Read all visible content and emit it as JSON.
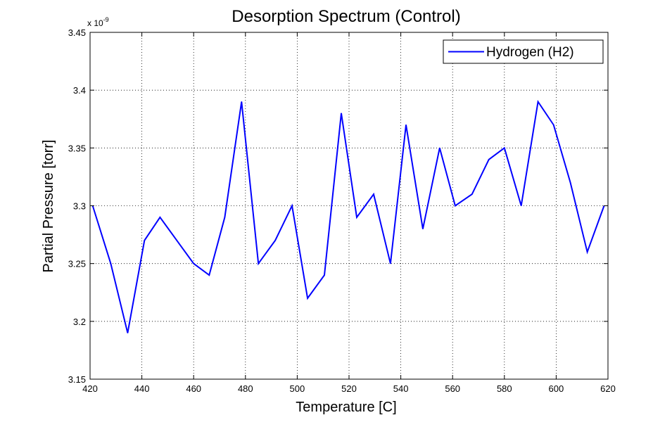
{
  "chart_data": {
    "type": "line",
    "title": "Desorption Spectrum (Control)",
    "xlabel": "Temperature [C]",
    "ylabel": "Partial Pressure [torr]",
    "y_exponent": {
      "base": "x 10",
      "power": "-9"
    },
    "xlim": [
      420,
      620
    ],
    "ylim": [
      3.15,
      3.45
    ],
    "x_ticks": [
      420,
      440,
      460,
      480,
      500,
      520,
      540,
      560,
      580,
      600,
      620
    ],
    "y_ticks": [
      3.15,
      3.2,
      3.25,
      3.3,
      3.35,
      3.4,
      3.45
    ],
    "y_tick_labels": [
      "3.15",
      "3.2",
      "3.25",
      "3.3",
      "3.35",
      "3.4",
      "3.45"
    ],
    "grid": true,
    "legend_position": "top-right",
    "series": [
      {
        "name": "Hydrogen (H2)",
        "color": "#0000ff",
        "x": [
          421,
          428,
          434.5,
          441,
          447,
          453.5,
          460,
          466,
          472,
          478.5,
          485,
          491.5,
          498,
          504,
          510.5,
          517,
          523,
          529.5,
          536,
          542,
          548.5,
          555,
          561,
          567.5,
          574,
          580,
          586.5,
          593,
          599,
          605.5,
          612,
          618.5
        ],
        "y": [
          3.3,
          3.25,
          3.19,
          3.27,
          3.29,
          3.27,
          3.25,
          3.24,
          3.29,
          3.39,
          3.25,
          3.27,
          3.3,
          3.22,
          3.24,
          3.38,
          3.29,
          3.31,
          3.25,
          3.37,
          3.28,
          3.35,
          3.3,
          3.31,
          3.34,
          3.35,
          3.3,
          3.39,
          3.37,
          3.32,
          3.26,
          3.3
        ]
      }
    ]
  }
}
